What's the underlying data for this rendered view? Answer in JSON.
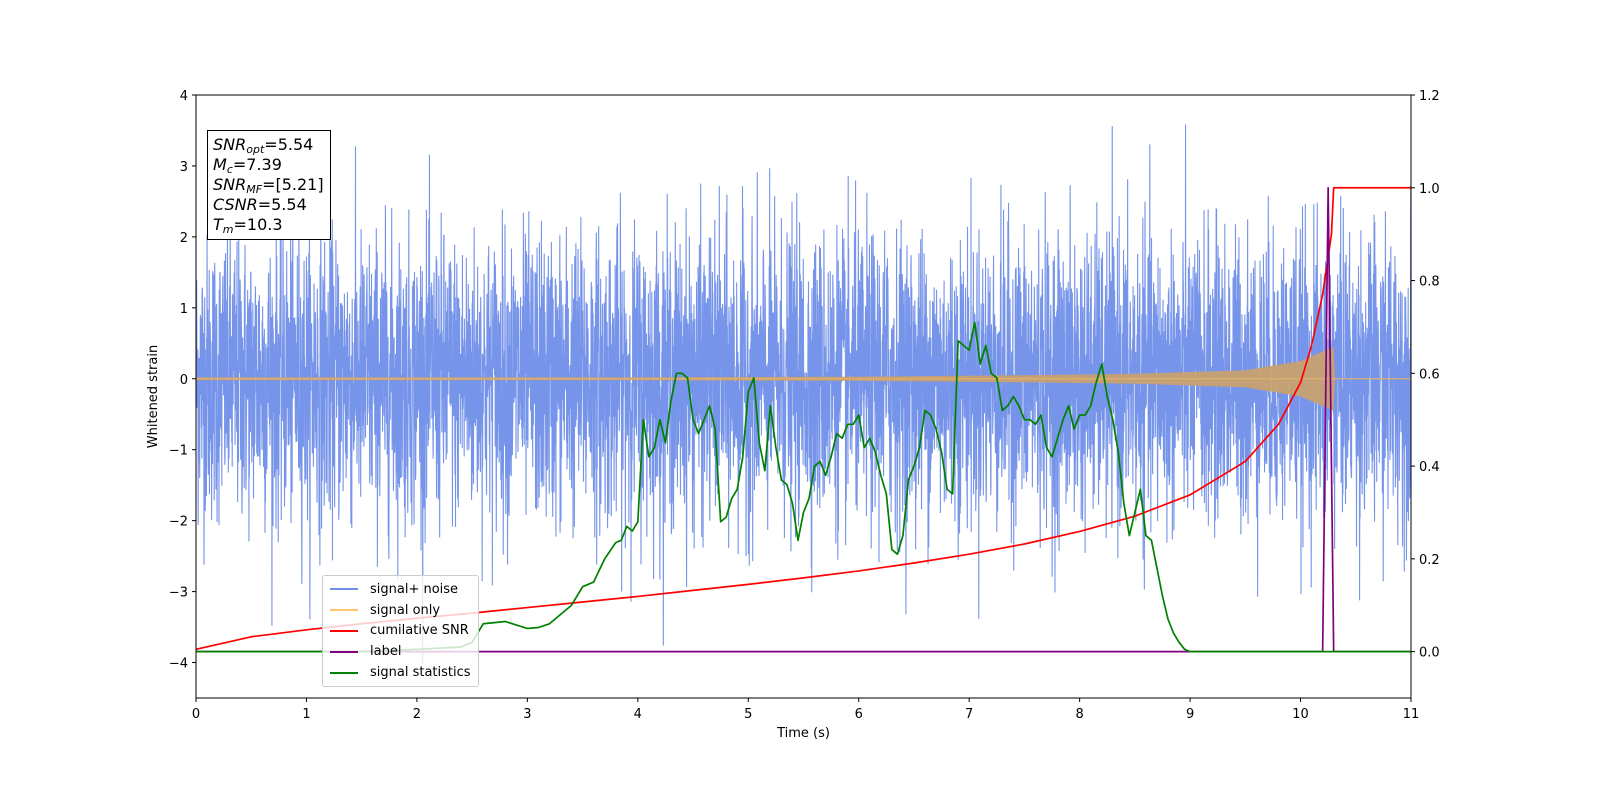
{
  "chart_data": {
    "type": "line",
    "xlabel": "Time (s)",
    "ylabel": "Whitened strain",
    "xlim": [
      0,
      11
    ],
    "ylim_left": [
      -4.5,
      4
    ],
    "ylim_right": [
      -0.1,
      1.2
    ],
    "x_ticks": [
      "0",
      "1",
      "2",
      "3",
      "4",
      "5",
      "6",
      "7",
      "8",
      "9",
      "10",
      "11"
    ],
    "y_ticks_left": [
      "4",
      "3",
      "2",
      "1",
      "0",
      "−1",
      "−2",
      "−3",
      "−4"
    ],
    "y_ticks_right": [
      "1.2",
      "1.0",
      "0.8",
      "0.6",
      "0.4",
      "0.2",
      "0.0"
    ],
    "legend_position": "lower-left",
    "annotations": [
      {
        "name": "SNR",
        "sub": "opt",
        "value": "=5.54"
      },
      {
        "name": "M",
        "sub": "c",
        "value": "=7.39"
      },
      {
        "name": "SNR",
        "sub": "MF",
        "value": "=[5.21]"
      },
      {
        "name": "CSNR",
        "sub": "",
        "value": "=5.54"
      },
      {
        "name": "T",
        "sub": "m",
        "value": "=10.3"
      }
    ],
    "series": [
      {
        "name": "signal+ noise",
        "color": "#6f8ee8",
        "axis": "left",
        "description_values": {
          "mean": 0,
          "std": 1.0,
          "min": -4.15,
          "max": 3.65
        }
      },
      {
        "name": "signal only",
        "color": "#d4a36b",
        "axis": "left",
        "envelope": {
          "x": [
            0,
            4,
            6,
            7.5,
            8.5,
            9.5,
            10,
            10.3
          ],
          "amp": [
            0.02,
            0.02,
            0.03,
            0.05,
            0.07,
            0.12,
            0.25,
            0.45
          ]
        }
      },
      {
        "name": "cumilative SNR",
        "color": "#ff0000",
        "axis": "right",
        "x": [
          0,
          0.5,
          1,
          1.5,
          2,
          2.5,
          3,
          3.5,
          4,
          4.5,
          5,
          5.5,
          6,
          6.5,
          7,
          7.5,
          8,
          8.5,
          9,
          9.5,
          9.8,
          10,
          10.1,
          10.2,
          10.28,
          10.3,
          11
        ],
        "y": [
          0.005,
          0.032,
          0.047,
          0.06,
          0.072,
          0.083,
          0.095,
          0.107,
          0.119,
          0.132,
          0.145,
          0.159,
          0.174,
          0.191,
          0.21,
          0.232,
          0.259,
          0.292,
          0.338,
          0.41,
          0.49,
          0.58,
          0.66,
          0.77,
          0.9,
          1.0,
          1.0
        ]
      },
      {
        "name": "label",
        "color": "#800080",
        "axis": "right",
        "x": [
          0,
          10.2,
          10.25,
          10.3,
          11
        ],
        "y": [
          0,
          0,
          1.0,
          0,
          0
        ]
      },
      {
        "name": "signal statistics",
        "color": "#008000",
        "axis": "right",
        "x": [
          0,
          1.5,
          2,
          2.4,
          2.5,
          2.6,
          2.8,
          3,
          3.1,
          3.2,
          3.3,
          3.4,
          3.5,
          3.6,
          3.7,
          3.8,
          3.85,
          3.9,
          3.95,
          4.0,
          4.05,
          4.1,
          4.15,
          4.2,
          4.25,
          4.3,
          4.35,
          4.4,
          4.45,
          4.5,
          4.55,
          4.6,
          4.65,
          4.7,
          4.75,
          4.8,
          4.85,
          4.9,
          4.95,
          5.0,
          5.05,
          5.1,
          5.15,
          5.2,
          5.25,
          5.3,
          5.35,
          5.4,
          5.45,
          5.5,
          5.55,
          5.6,
          5.65,
          5.7,
          5.75,
          5.8,
          5.85,
          5.9,
          5.95,
          6.0,
          6.05,
          6.1,
          6.15,
          6.2,
          6.25,
          6.3,
          6.35,
          6.4,
          6.45,
          6.5,
          6.55,
          6.6,
          6.65,
          6.7,
          6.75,
          6.8,
          6.85,
          6.9,
          6.95,
          7.0,
          7.05,
          7.1,
          7.15,
          7.2,
          7.25,
          7.3,
          7.35,
          7.4,
          7.45,
          7.5,
          7.55,
          7.6,
          7.65,
          7.7,
          7.75,
          7.8,
          7.85,
          7.9,
          7.95,
          8.0,
          8.05,
          8.1,
          8.15,
          8.2,
          8.25,
          8.3,
          8.35,
          8.4,
          8.45,
          8.5,
          8.55,
          8.6,
          8.65,
          8.7,
          8.75,
          8.8,
          8.85,
          8.9,
          8.95,
          9.0,
          9.05,
          9.1,
          9.15,
          9.2,
          9.25,
          9.3,
          9.35,
          9.4,
          9.5,
          9.6,
          9.8,
          10.0,
          10.2,
          11
        ],
        "y": [
          0.0,
          0.0,
          0.005,
          0.01,
          0.02,
          0.06,
          0.065,
          0.05,
          0.052,
          0.06,
          0.08,
          0.1,
          0.14,
          0.15,
          0.2,
          0.235,
          0.24,
          0.27,
          0.26,
          0.28,
          0.5,
          0.42,
          0.44,
          0.5,
          0.45,
          0.54,
          0.6,
          0.6,
          0.59,
          0.5,
          0.47,
          0.5,
          0.53,
          0.48,
          0.28,
          0.29,
          0.33,
          0.35,
          0.42,
          0.56,
          0.59,
          0.45,
          0.39,
          0.53,
          0.44,
          0.37,
          0.36,
          0.32,
          0.24,
          0.3,
          0.33,
          0.4,
          0.41,
          0.38,
          0.42,
          0.47,
          0.46,
          0.49,
          0.49,
          0.51,
          0.44,
          0.46,
          0.43,
          0.38,
          0.34,
          0.22,
          0.21,
          0.25,
          0.37,
          0.4,
          0.44,
          0.52,
          0.51,
          0.48,
          0.43,
          0.35,
          0.34,
          0.67,
          0.66,
          0.65,
          0.71,
          0.62,
          0.66,
          0.6,
          0.59,
          0.52,
          0.53,
          0.55,
          0.53,
          0.5,
          0.5,
          0.49,
          0.51,
          0.44,
          0.42,
          0.46,
          0.5,
          0.53,
          0.48,
          0.51,
          0.51,
          0.53,
          0.58,
          0.62,
          0.55,
          0.5,
          0.43,
          0.32,
          0.25,
          0.3,
          0.35,
          0.25,
          0.24,
          0.18,
          0.12,
          0.07,
          0.04,
          0.02,
          0.005,
          0.0,
          0.0,
          0.0,
          0.0,
          0.0,
          0.0,
          0.0,
          0.0,
          0.0,
          0.0,
          0.0,
          0.0,
          0.0,
          0.0,
          0.0
        ]
      }
    ]
  }
}
